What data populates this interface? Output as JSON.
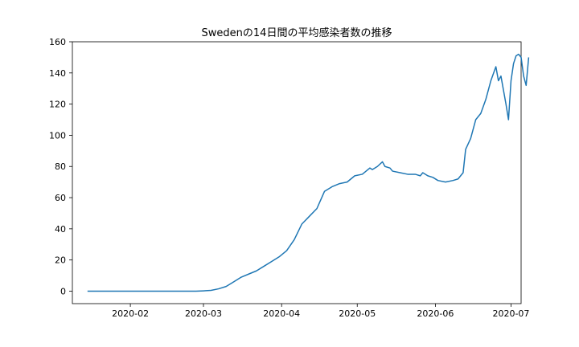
{
  "chart_data": {
    "type": "line",
    "title": "Swedenの14日間の平均感染者数の推移",
    "xlabel": "",
    "ylabel": "",
    "x_axis": "date",
    "xlim": [
      "2020-01-09",
      "2020-07-05"
    ],
    "ylim": [
      -8,
      160
    ],
    "x_ticks": [
      "2020-02-01",
      "2020-03-01",
      "2020-04-01",
      "2020-05-01",
      "2020-06-01",
      "2020-07-01"
    ],
    "x_tick_labels": [
      "2020-02",
      "2020-03",
      "2020-04",
      "2020-05",
      "2020-06",
      "2020-07"
    ],
    "y_ticks": [
      0,
      20,
      40,
      60,
      80,
      100,
      120,
      140,
      160
    ],
    "y_tick_labels": [
      "0",
      "20",
      "40",
      "60",
      "80",
      "100",
      "120",
      "140",
      "160"
    ],
    "grid": false,
    "legend": "none",
    "colors": {
      "line": "#1f77b4",
      "axes": "#000000",
      "background": "#ffffff"
    },
    "series": [
      {
        "values": [
          [
            "2020-01-15",
            0
          ],
          [
            "2020-02-01",
            0
          ],
          [
            "2020-02-15",
            0
          ],
          [
            "2020-02-27",
            0
          ],
          [
            "2020-03-01",
            0.2
          ],
          [
            "2020-03-04",
            0.5
          ],
          [
            "2020-03-07",
            1.5
          ],
          [
            "2020-03-10",
            3
          ],
          [
            "2020-03-13",
            6
          ],
          [
            "2020-03-16",
            9
          ],
          [
            "2020-03-19",
            11
          ],
          [
            "2020-03-22",
            13
          ],
          [
            "2020-03-25",
            16
          ],
          [
            "2020-03-28",
            19
          ],
          [
            "2020-03-31",
            22
          ],
          [
            "2020-04-03",
            26
          ],
          [
            "2020-04-06",
            33
          ],
          [
            "2020-04-09",
            43
          ],
          [
            "2020-04-12",
            48
          ],
          [
            "2020-04-15",
            53
          ],
          [
            "2020-04-18",
            64
          ],
          [
            "2020-04-21",
            67
          ],
          [
            "2020-04-24",
            69
          ],
          [
            "2020-04-27",
            70
          ],
          [
            "2020-04-30",
            74
          ],
          [
            "2020-05-03",
            75
          ],
          [
            "2020-05-06",
            79
          ],
          [
            "2020-05-07",
            78
          ],
          [
            "2020-05-09",
            80
          ],
          [
            "2020-05-11",
            83
          ],
          [
            "2020-05-12",
            80
          ],
          [
            "2020-05-14",
            79
          ],
          [
            "2020-05-15",
            77
          ],
          [
            "2020-05-18",
            76
          ],
          [
            "2020-05-21",
            75
          ],
          [
            "2020-05-24",
            75
          ],
          [
            "2020-05-26",
            74
          ],
          [
            "2020-05-27",
            76
          ],
          [
            "2020-05-29",
            74
          ],
          [
            "2020-05-31",
            73
          ],
          [
            "2020-06-02",
            71
          ],
          [
            "2020-06-05",
            70
          ],
          [
            "2020-06-08",
            71
          ],
          [
            "2020-06-10",
            72
          ],
          [
            "2020-06-12",
            76
          ],
          [
            "2020-06-13",
            91
          ],
          [
            "2020-06-15",
            98
          ],
          [
            "2020-06-17",
            110
          ],
          [
            "2020-06-19",
            114
          ],
          [
            "2020-06-21",
            123
          ],
          [
            "2020-06-23",
            135
          ],
          [
            "2020-06-25",
            144
          ],
          [
            "2020-06-26",
            135
          ],
          [
            "2020-06-27",
            138
          ],
          [
            "2020-06-29",
            120
          ],
          [
            "2020-06-30",
            110
          ],
          [
            "2020-07-01",
            135
          ],
          [
            "2020-07-02",
            146
          ],
          [
            "2020-07-03",
            151
          ],
          [
            "2020-07-04",
            152
          ],
          [
            "2020-07-05",
            150
          ],
          [
            "2020-07-06",
            138
          ],
          [
            "2020-07-07",
            132
          ],
          [
            "2020-07-08",
            150
          ]
        ]
      }
    ]
  }
}
